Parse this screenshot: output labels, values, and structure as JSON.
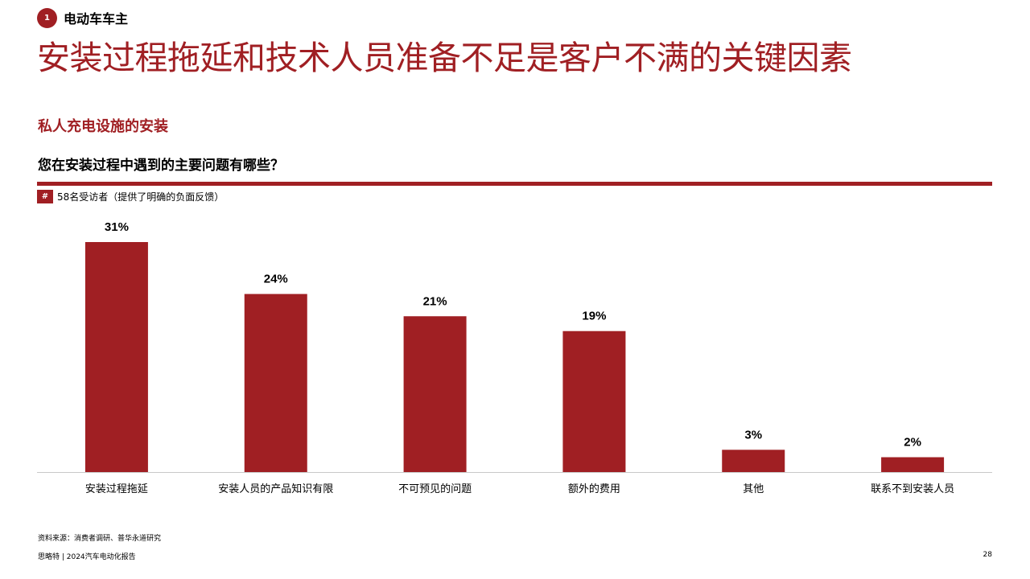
{
  "section": {
    "number": "1",
    "label": "电动车车主"
  },
  "title": "安装过程拖延和技术人员准备不足是客户不满的关键因素",
  "subtitle": "私人充电设施的安装",
  "question": "您在安装过程中遇到的主要问题有哪些？",
  "respondents": {
    "symbol": "#",
    "text": "58名受访者（提供了明确的负面反馈）"
  },
  "colors": {
    "accent": "#a01f23",
    "axis": "#c8c8c8"
  },
  "chart_data": {
    "type": "bar",
    "categories": [
      "安装过程拖延",
      "安装人员的产品知识有限",
      "不可预见的问题",
      "额外的费用",
      "其他",
      "联系不到安装人员"
    ],
    "values": [
      31,
      24,
      21,
      19,
      3,
      2
    ],
    "value_labels": [
      "31%",
      "24%",
      "21%",
      "19%",
      "3%",
      "2%"
    ],
    "title": "",
    "xlabel": "",
    "ylabel": "",
    "ylim": [
      0,
      31
    ],
    "grid": false,
    "legend": "none"
  },
  "source": "资料来源：消费者调研、普华永道研究",
  "footer": "思略特 | 2024汽车电动化报告",
  "page_number": "28"
}
